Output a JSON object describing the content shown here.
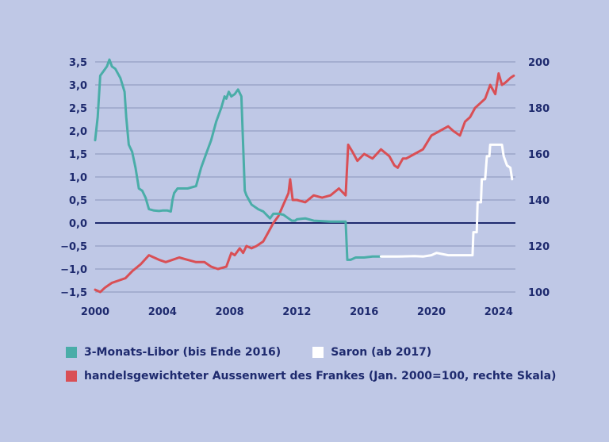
{
  "chart_data": {
    "type": "line",
    "x_range": [
      2000,
      2025
    ],
    "x_ticks": [
      "2000",
      "2004",
      "2008",
      "2012",
      "2016",
      "2020",
      "2024"
    ],
    "y_left_range": [
      -1.5,
      3.5
    ],
    "y_left_ticks": [
      "3,5",
      "3,0",
      "2,5",
      "2,0",
      "1,5",
      "1,0",
      "0,5",
      "0,0",
      "−0,5",
      "−1,0",
      "−1,5"
    ],
    "y_right_range": [
      100,
      200
    ],
    "y_right_ticks": [
      "200",
      "180",
      "160",
      "140",
      "120",
      "100"
    ],
    "grid": true,
    "zero_line": 0,
    "series": [
      {
        "name": "3-Monats-Libor (bis Ende 2016)",
        "axis": "left",
        "color": "#4aada8",
        "x": [
          2000.0,
          2000.15,
          2000.3,
          2000.5,
          2000.7,
          2000.85,
          2001.0,
          2001.2,
          2001.5,
          2001.75,
          2001.85,
          2002.0,
          2002.2,
          2002.4,
          2002.6,
          2002.8,
          2003.0,
          2003.2,
          2003.5,
          2003.8,
          2004.0,
          2004.3,
          2004.5,
          2004.6,
          2004.7,
          2004.9,
          2005.2,
          2005.5,
          2006.0,
          2006.3,
          2006.6,
          2006.9,
          2007.2,
          2007.5,
          2007.7,
          2007.8,
          2007.95,
          2008.1,
          2008.3,
          2008.5,
          2008.7,
          2008.8,
          2008.9,
          2009.0,
          2009.3,
          2009.7,
          2010.0,
          2010.4,
          2010.6,
          2010.9,
          2011.2,
          2011.5,
          2011.7,
          2011.9,
          2012.0,
          2012.5,
          2013.0,
          2014.0,
          2014.9,
          2015.0,
          2015.2,
          2015.5,
          2016.0,
          2016.5,
          2017.0
        ],
        "y": [
          1.8,
          2.3,
          3.2,
          3.3,
          3.4,
          3.55,
          3.4,
          3.35,
          3.15,
          2.85,
          2.3,
          1.7,
          1.55,
          1.2,
          0.75,
          0.7,
          0.55,
          0.3,
          0.27,
          0.26,
          0.27,
          0.27,
          0.25,
          0.5,
          0.65,
          0.75,
          0.75,
          0.75,
          0.8,
          1.2,
          1.5,
          1.8,
          2.2,
          2.5,
          2.75,
          2.7,
          2.85,
          2.75,
          2.8,
          2.9,
          2.75,
          1.7,
          0.7,
          0.6,
          0.4,
          0.3,
          0.25,
          0.1,
          0.2,
          0.2,
          0.18,
          0.1,
          0.05,
          0.05,
          0.08,
          0.1,
          0.05,
          0.03,
          0.03,
          -0.8,
          -0.8,
          -0.75,
          -0.75,
          -0.73,
          -0.73
        ]
      },
      {
        "name": "Saron (ab 2017)",
        "axis": "left",
        "color": "#ffffff",
        "x": [
          2017.0,
          2018.0,
          2019.0,
          2019.5,
          2020.0,
          2020.3,
          2021.0,
          2022.0,
          2022.45,
          2022.5,
          2022.7,
          2022.75,
          2022.95,
          2023.0,
          2023.2,
          2023.3,
          2023.45,
          2023.5,
          2023.7,
          2024.2,
          2024.3,
          2024.5,
          2024.7,
          2024.8
        ],
        "y": [
          -0.73,
          -0.73,
          -0.72,
          -0.73,
          -0.7,
          -0.65,
          -0.7,
          -0.7,
          -0.7,
          -0.2,
          -0.2,
          0.45,
          0.45,
          0.95,
          0.95,
          1.45,
          1.45,
          1.7,
          1.7,
          1.7,
          1.45,
          1.25,
          1.2,
          0.95
        ]
      },
      {
        "name": "handelsgewichteter Aussenwert des Frankes (Jan. 2000=100, rechte Skala)",
        "axis": "right",
        "color": "#d94f55",
        "x": [
          2000.0,
          2000.3,
          2000.6,
          2001.0,
          2001.4,
          2001.8,
          2002.2,
          2002.7,
          2003.2,
          2003.5,
          2003.8,
          2004.2,
          2004.6,
          2005.0,
          2005.5,
          2006.0,
          2006.5,
          2006.9,
          2007.3,
          2007.8,
          2008.1,
          2008.3,
          2008.6,
          2008.8,
          2009.0,
          2009.3,
          2009.6,
          2010.0,
          2010.3,
          2010.6,
          2010.9,
          2011.2,
          2011.5,
          2011.6,
          2011.75,
          2012.0,
          2012.5,
          2013.0,
          2013.5,
          2014.0,
          2014.5,
          2014.9,
          2015.05,
          2015.3,
          2015.6,
          2016.0,
          2016.5,
          2017.0,
          2017.5,
          2017.8,
          2018.0,
          2018.3,
          2018.5,
          2019.0,
          2019.5,
          2020.0,
          2020.5,
          2021.0,
          2021.3,
          2021.7,
          2022.0,
          2022.3,
          2022.6,
          2022.9,
          2023.2,
          2023.5,
          2023.8,
          2024.0,
          2024.2,
          2024.4,
          2024.7,
          2024.9
        ],
        "y": [
          101,
          100,
          102,
          104,
          105,
          106,
          109,
          112,
          116,
          115,
          114,
          113,
          114,
          115,
          114,
          113,
          113,
          111,
          110,
          111,
          117,
          116,
          119,
          117,
          120,
          119,
          120,
          122,
          126,
          130,
          133,
          138,
          143,
          149,
          140,
          140,
          139,
          142,
          141,
          142,
          145,
          142,
          164,
          161,
          157,
          160,
          158,
          162,
          159,
          155,
          154,
          158,
          158,
          160,
          162,
          168,
          170,
          172,
          170,
          168,
          174,
          176,
          180,
          182,
          184,
          190,
          186,
          195,
          190,
          191,
          193,
          194
        ]
      }
    ]
  },
  "legend": {
    "libor": "3-Monats-Libor (bis Ende 2016)",
    "saron": "Saron (ab 2017)",
    "franken": "handelsgewichteter Aussenwert des Frankes (Jan. 2000=100, rechte Skala)"
  },
  "colors": {
    "background": "#bfc8e6",
    "grid": "#8a93b9",
    "axis_text": "#1e2a6e",
    "zero_line": "#1e2a6e"
  }
}
